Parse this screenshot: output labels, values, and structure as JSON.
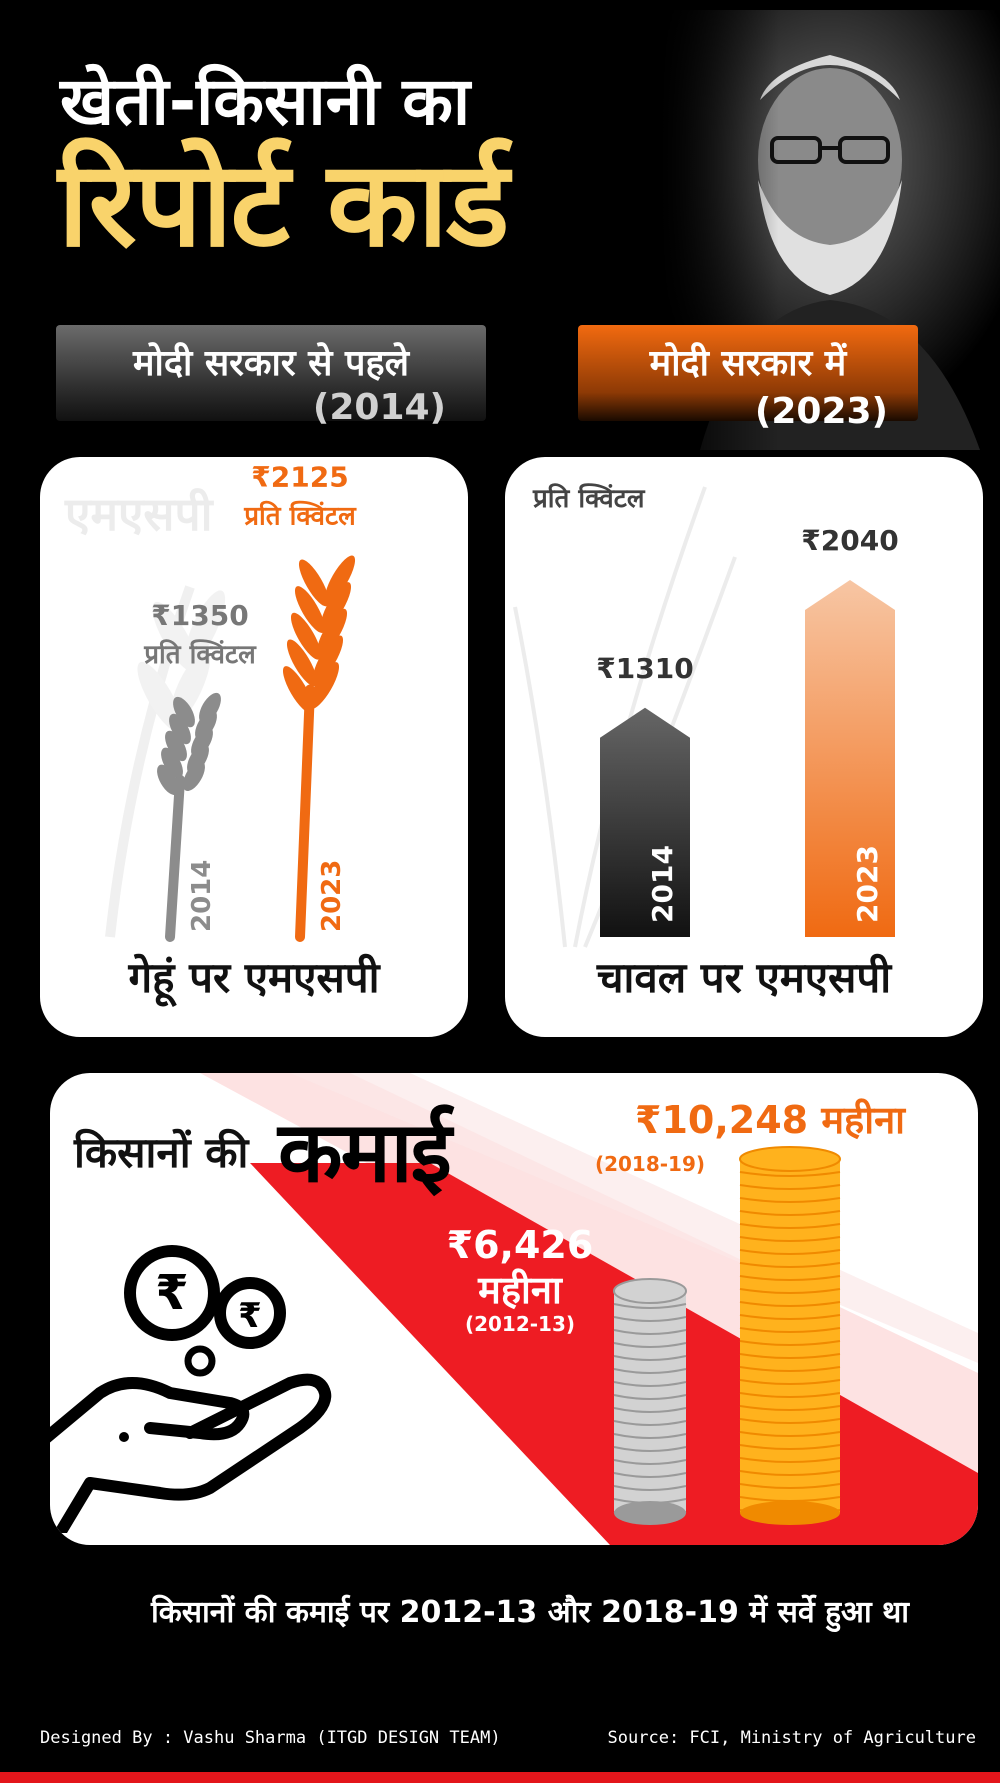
{
  "header": {
    "title_line1": "खेती-किसानी का",
    "title_line2": "रिपोर्ट कार्ड"
  },
  "tags": {
    "before": {
      "label": "मोदी सरकार से पहले",
      "year": "(2014)"
    },
    "after": {
      "label": "मोदी सरकार में",
      "year": "(2023)"
    }
  },
  "wheat_card": {
    "ghost_word": "एमएसपी",
    "footer": "गेहूं पर एमएसपी"
  },
  "rice_card": {
    "unit_label": "प्रति क्विंटल",
    "footer": "चावल पर एमएसपी"
  },
  "earnings_card": {
    "title_small": "किसानों की",
    "title_big": "कमाई",
    "icon": "hand-with-rupee-coins-icon"
  },
  "footnote": "किसानों की कमाई पर 2012-13 और 2018-19 में सर्वे हुआ था",
  "credit": "Designed By : Vashu Sharma (ITGD DESIGN TEAM)",
  "source": "Source: FCI, Ministry of Agriculture",
  "colors": {
    "accent": "#f06a12",
    "gold": "#f9d36b",
    "grey": "#777777",
    "red": "#e3161b"
  },
  "chart_data": [
    {
      "type": "bar",
      "title": "गेहूं पर एमएसपी",
      "categories": [
        "2014",
        "2023"
      ],
      "values": [
        1350,
        2125
      ],
      "value_labels": [
        "₹1350",
        "₹2125"
      ],
      "unit_labels": [
        "प्रति क्विंटल",
        "प्रति क्विंटल"
      ],
      "ylim": [
        0,
        2400
      ]
    },
    {
      "type": "bar",
      "title": "चावल पर एमएसपी",
      "categories": [
        "2014",
        "2023"
      ],
      "values": [
        1310,
        2040
      ],
      "value_labels": [
        "₹1310",
        "₹2040"
      ],
      "ylim": [
        0,
        2400
      ]
    },
    {
      "type": "bar",
      "title": "किसानों की कमाई",
      "categories": [
        "(2012-13)",
        "(2018-19)"
      ],
      "values": [
        6426,
        10248
      ],
      "value_labels": [
        "₹6,426",
        "₹10,248"
      ],
      "unit_label": "महीना",
      "ylim": [
        0,
        11000
      ]
    }
  ]
}
